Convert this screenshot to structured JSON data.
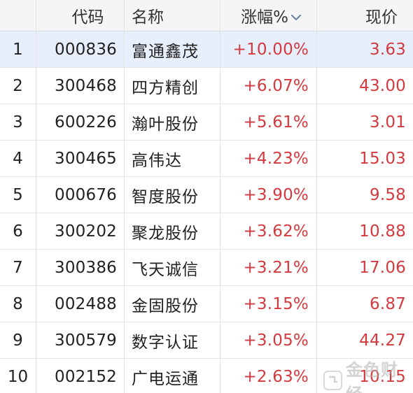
{
  "header": {
    "code": "代码",
    "name": "名称",
    "change": "涨幅%",
    "price": "现价"
  },
  "sort_icon": "chevron-down-icon",
  "colors": {
    "up": "#d33a3f",
    "selected_row": "#e6effb",
    "header_bg": "#f5f5f7"
  },
  "rows": [
    {
      "idx": "1",
      "code": "000836",
      "name": "富通鑫茂",
      "change": "+10.00%",
      "price": "3.63"
    },
    {
      "idx": "2",
      "code": "300468",
      "name": "四方精创",
      "change": "+6.07%",
      "price": "43.00"
    },
    {
      "idx": "3",
      "code": "600226",
      "name": "瀚叶股份",
      "change": "+5.61%",
      "price": "3.01"
    },
    {
      "idx": "4",
      "code": "300465",
      "name": "高伟达",
      "change": "+4.23%",
      "price": "15.03"
    },
    {
      "idx": "5",
      "code": "000676",
      "name": "智度股份",
      "change": "+3.90%",
      "price": "9.58"
    },
    {
      "idx": "6",
      "code": "300202",
      "name": "聚龙股份",
      "change": "+3.62%",
      "price": "10.88"
    },
    {
      "idx": "7",
      "code": "300386",
      "name": "飞天诚信",
      "change": "+3.21%",
      "price": "17.06"
    },
    {
      "idx": "8",
      "code": "002488",
      "name": "金固股份",
      "change": "+3.15%",
      "price": "6.87"
    },
    {
      "idx": "9",
      "code": "300579",
      "name": "数字认证",
      "change": "+3.05%",
      "price": "44.27"
    },
    {
      "idx": "10",
      "code": "002152",
      "name": "广电运通",
      "change": "+2.63%",
      "price": "10.15"
    }
  ],
  "watermark": {
    "text": "金色财经",
    "icon": "jinse-logo-icon"
  }
}
